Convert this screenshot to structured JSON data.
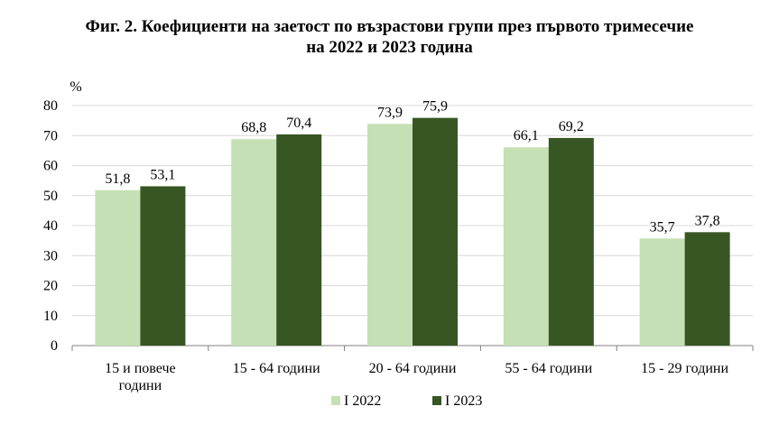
{
  "chart_data": {
    "type": "bar",
    "title_line1": "Фиг. 2. Коефициенти на заетост по възрастови групи през първото тримесечие",
    "title_line2": "на 2022 и 2023 година",
    "ylabel": "%",
    "ylim": [
      0,
      80
    ],
    "yticks": [
      "0",
      "10",
      "20",
      "30",
      "40",
      "50",
      "60",
      "70",
      "80"
    ],
    "yticks_values": [
      0,
      10,
      20,
      30,
      40,
      50,
      60,
      70,
      80
    ],
    "categories": [
      [
        "15 и повече",
        "години"
      ],
      [
        "15 - 64 години"
      ],
      [
        "20 - 64 години"
      ],
      [
        "55 - 64 години"
      ],
      [
        "15 - 29 години"
      ]
    ],
    "series": [
      {
        "name": "I 2022",
        "color": "#c5e0b4",
        "values": [
          51.8,
          68.8,
          73.9,
          66.1,
          35.7
        ],
        "labels": [
          "51,8",
          "68,8",
          "73,9",
          "66,1",
          "35,7"
        ]
      },
      {
        "name": "I 2023",
        "color": "#375623",
        "values": [
          53.1,
          70.4,
          75.9,
          69.2,
          37.8
        ],
        "labels": [
          "53,1",
          "70,4",
          "75,9",
          "69,2",
          "37,8"
        ]
      }
    ],
    "grid": true,
    "legend": "bottom-center"
  }
}
